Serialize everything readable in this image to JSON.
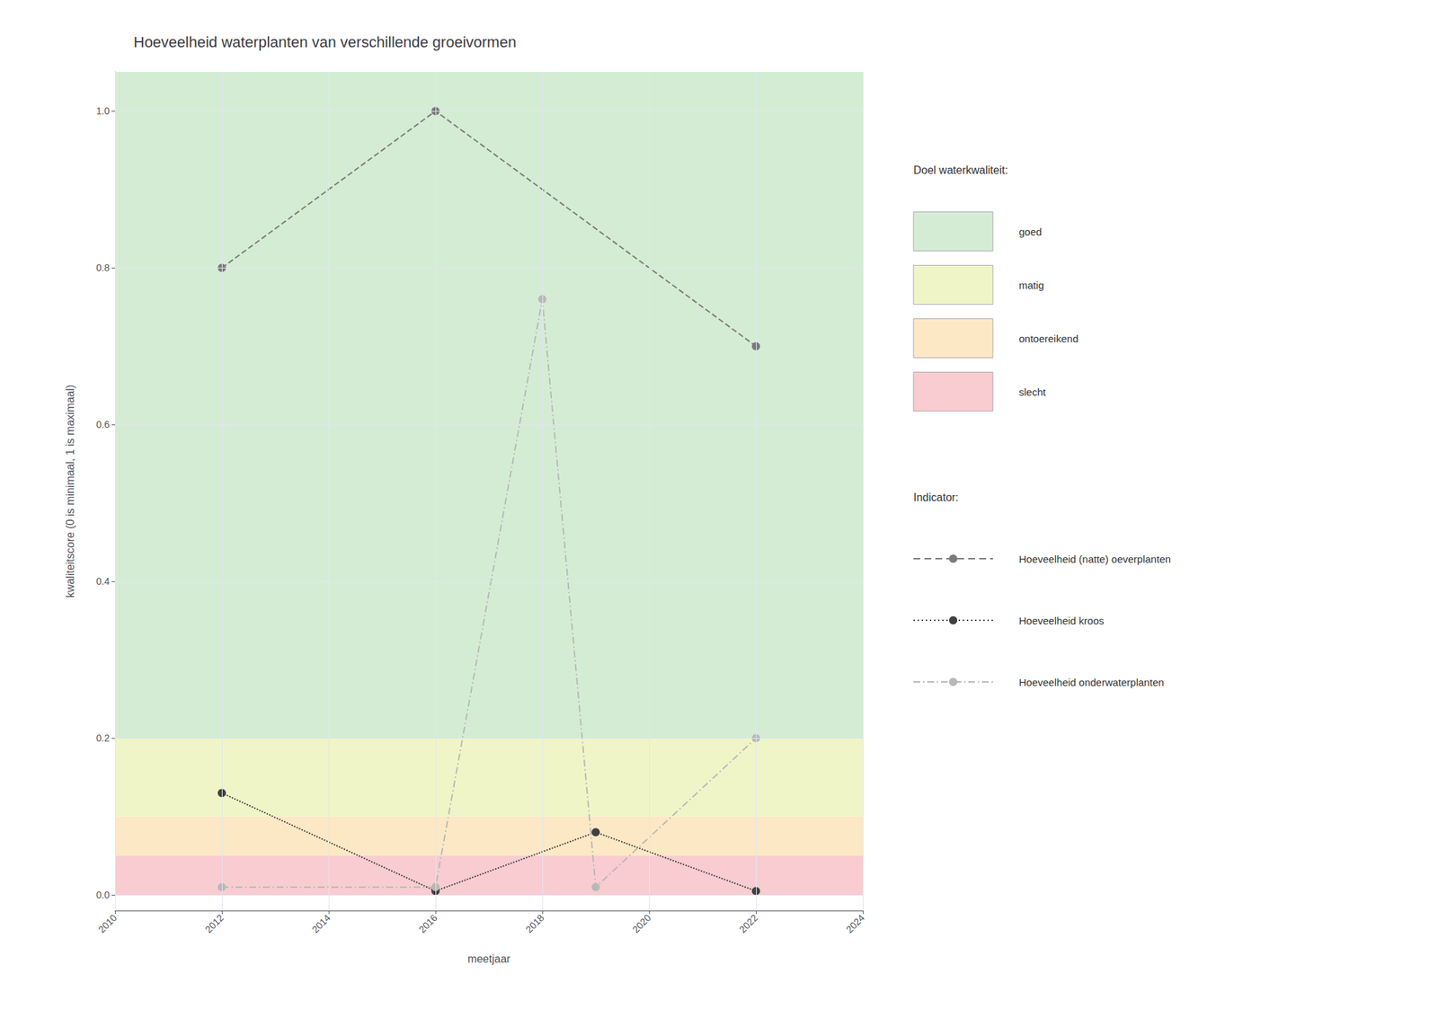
{
  "chart_data": {
    "type": "line",
    "title": "Hoeveelheid waterplanten van verschillende groeivormen",
    "x_label": "meetjaar",
    "y_label": "kwaliteitscore (0 is minimaal, 1 is maximaal)",
    "xlim": [
      2010,
      2024
    ],
    "ylim": [
      -0.02,
      1.05
    ],
    "xticks": [
      2010,
      2012,
      2014,
      2016,
      2018,
      2020,
      2022,
      2024
    ],
    "yticks": [
      {
        "value": 0.0,
        "label": "0.0"
      },
      0.2,
      0.4,
      0.6,
      0.8,
      {
        "value": 1.0,
        "label": "1.0"
      }
    ],
    "grid": true,
    "legend": "right",
    "bands_title": "Doel waterkwaliteit:",
    "bands": [
      {
        "label": "goed",
        "color": "#d5ecd4",
        "ymin": 0.2,
        "ymax": 1.05
      },
      {
        "label": "matig",
        "color": "#f0f5c8",
        "ymin": 0.1,
        "ymax": 0.2
      },
      {
        "label": "ontoereikend",
        "color": "#fce8c4",
        "ymin": 0.05,
        "ymax": 0.1
      },
      {
        "label": "slecht",
        "color": "#f8ccd0",
        "ymin": 0.0,
        "ymax": 0.05
      }
    ],
    "series_title": "Indicator:",
    "series": [
      {
        "name": "Hoeveelheid (natte) oeverplanten",
        "color": "#7a7a7a",
        "line_style": "dashed",
        "marker": "circle",
        "x": [
          2012,
          2016,
          2022
        ],
        "values": [
          0.8,
          1.0,
          0.7
        ]
      },
      {
        "name": "Hoeveelheid kroos",
        "color": "#404040",
        "line_style": "dotted",
        "marker": "circle",
        "x": [
          2012,
          2016,
          2019,
          2022
        ],
        "values": [
          0.13,
          0.005,
          0.08,
          0.005
        ]
      },
      {
        "name": "Hoeveelheid onderwaterplanten",
        "color": "#b8b8b8",
        "line_style": "dashdot",
        "marker": "circle",
        "x": [
          2012,
          2016,
          2018,
          2019,
          2022
        ],
        "values": [
          0.01,
          0.01,
          0.76,
          0.01,
          0.2
        ]
      }
    ]
  }
}
